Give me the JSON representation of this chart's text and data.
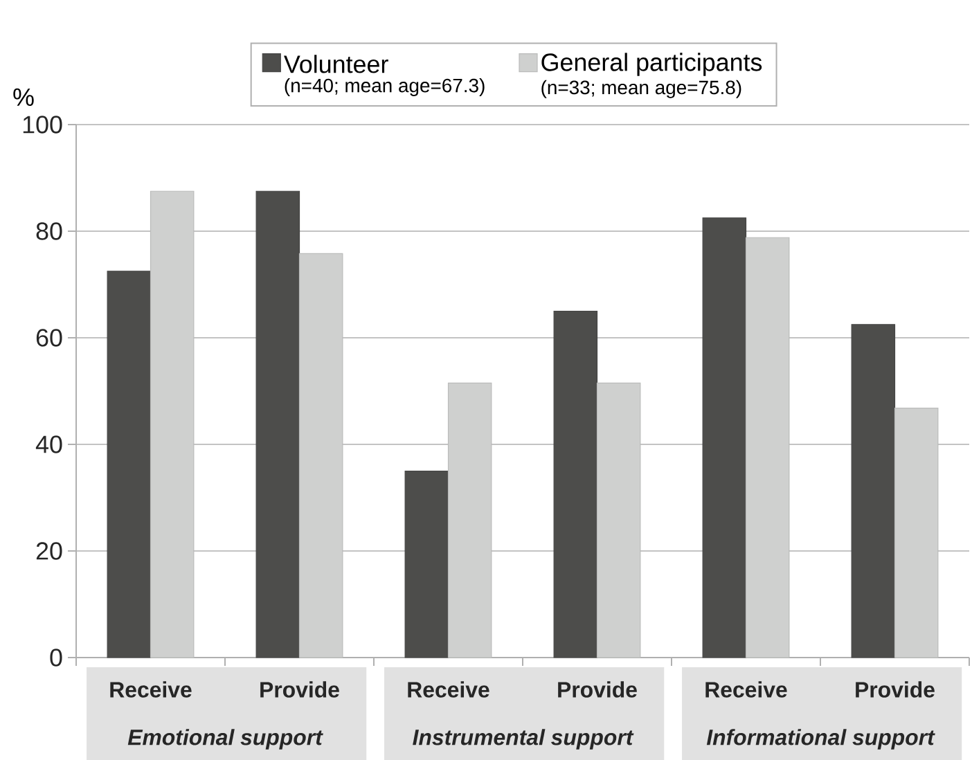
{
  "chart_data": {
    "type": "bar",
    "categories": [
      "Receive",
      "Provide",
      "Receive",
      "Provide",
      "Receive",
      "Provide"
    ],
    "series": [
      {
        "name": "Volunteer",
        "color": "#4d4d4b",
        "values": [
          72.5,
          87.5,
          35,
          65,
          82.5,
          62.5
        ]
      },
      {
        "name": "General participants",
        "color": "#cfd0cf",
        "values": [
          87.5,
          75.8,
          51.5,
          51.5,
          78.8,
          46.8
        ]
      }
    ],
    "ylabel": "%",
    "ylim": [
      0,
      100
    ],
    "yticks": [
      0,
      20,
      40,
      60,
      80,
      100
    ],
    "grid": "y",
    "legend": "top",
    "annotations": [
      "(n=40; mean age=67.3)",
      "(n=33; mean age=75.8)",
      "Emotional support",
      "Instrumental support",
      "Informational support"
    ]
  }
}
